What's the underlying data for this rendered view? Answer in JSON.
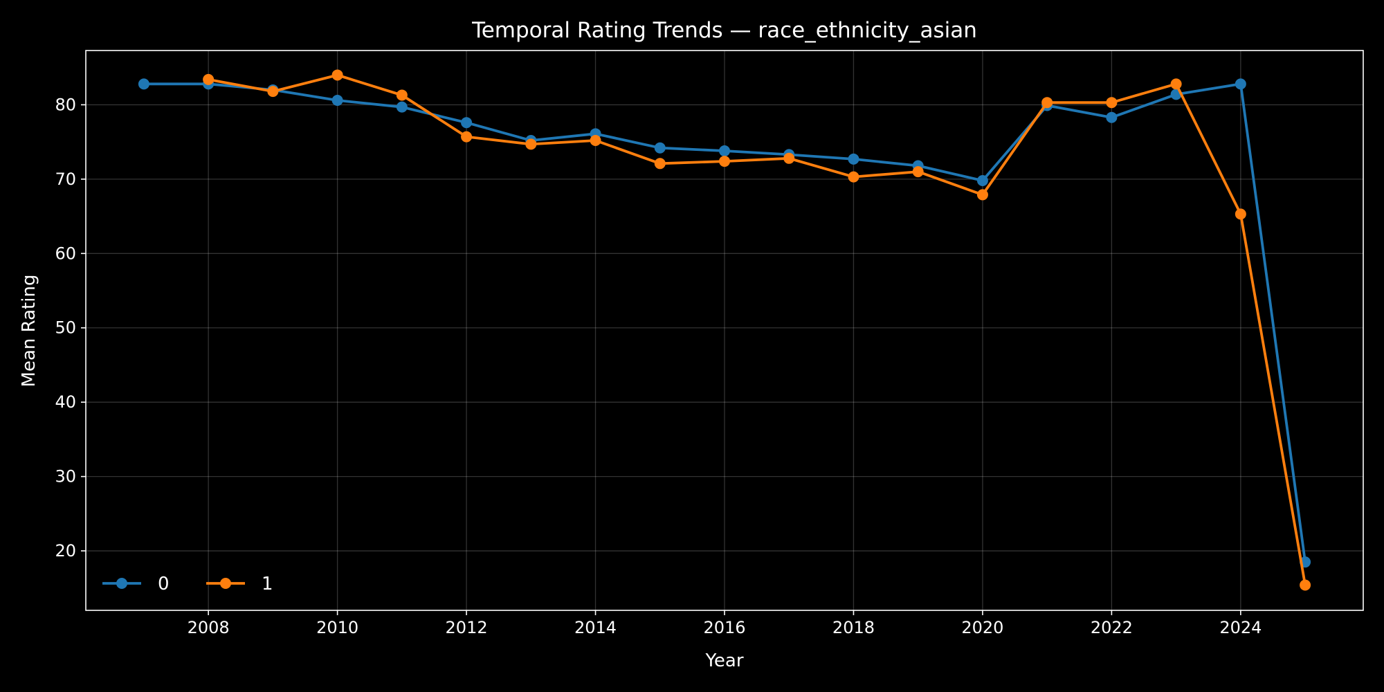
{
  "chart_data": {
    "type": "line",
    "title": "Temporal Rating Trends — race_ethnicity_asian",
    "xlabel": "Year",
    "ylabel": "Mean Rating",
    "xlim": [
      2006.1,
      2025.9
    ],
    "ylim": [
      12.0,
      87.3
    ],
    "xticks": [
      2008,
      2010,
      2012,
      2014,
      2016,
      2018,
      2020,
      2022,
      2024
    ],
    "yticks": [
      20,
      30,
      40,
      50,
      60,
      70,
      80
    ],
    "grid": true,
    "legend_position": "lower-left",
    "background_color": "#000000",
    "series": [
      {
        "name": "0",
        "color": "#1f77b4",
        "x": [
          2007,
          2008,
          2009,
          2010,
          2011,
          2012,
          2013,
          2014,
          2015,
          2016,
          2017,
          2018,
          2019,
          2020,
          2021,
          2022,
          2023,
          2024,
          2025
        ],
        "values": [
          82.8,
          82.8,
          82.0,
          80.6,
          79.7,
          77.6,
          75.2,
          76.1,
          74.2,
          73.8,
          73.3,
          72.7,
          71.8,
          69.8,
          79.9,
          78.3,
          81.4,
          82.8,
          18.5
        ]
      },
      {
        "name": "1",
        "color": "#ff7f0e",
        "x": [
          2008,
          2009,
          2010,
          2011,
          2012,
          2013,
          2014,
          2015,
          2016,
          2017,
          2018,
          2019,
          2020,
          2021,
          2022,
          2023,
          2024,
          2025
        ],
        "values": [
          83.4,
          81.8,
          84.0,
          81.3,
          75.7,
          74.7,
          75.2,
          72.1,
          72.4,
          72.8,
          70.3,
          71.0,
          67.9,
          80.3,
          80.3,
          82.8,
          65.3,
          15.4
        ]
      }
    ]
  }
}
